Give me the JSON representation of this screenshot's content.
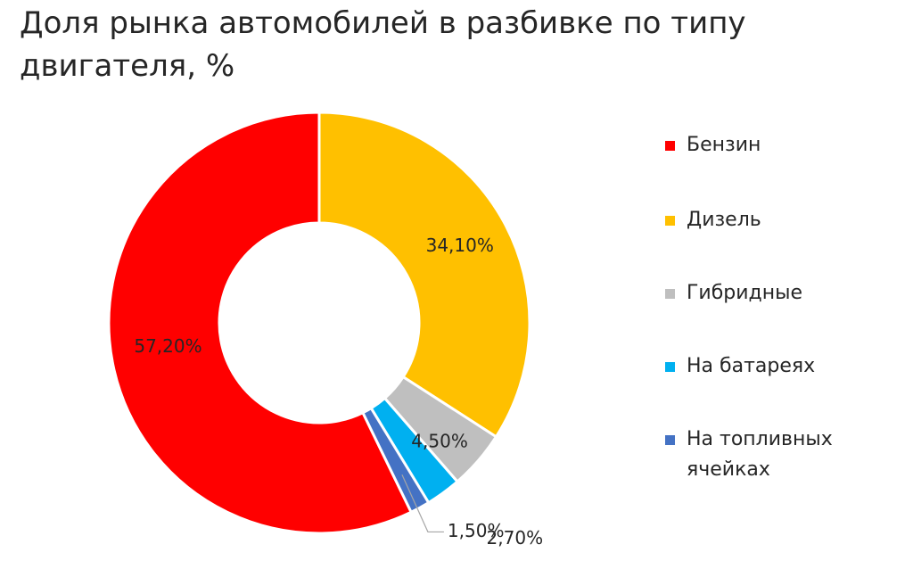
{
  "chart_data": {
    "type": "pie",
    "title": "Доля рынка автомобилей в разбивке по типу двигателя, %",
    "series": [
      {
        "labels": [
          "Бензин",
          "Дизель",
          "Гибридные",
          "На батареях",
          "На топливных ячейках"
        ],
        "values": [
          57.2,
          34.1,
          4.5,
          2.7,
          1.5
        ],
        "data_labels": [
          "57,20%",
          "34,10%",
          "4,50%",
          "2,70%",
          "1,50%"
        ],
        "colors": [
          "#ff0000",
          "#ffc000",
          "#bfbfbf",
          "#00b0f0",
          "#4472c4"
        ]
      }
    ],
    "legend_position": "right"
  },
  "legend": {
    "items": [
      {
        "label": "Бензин",
        "color": "#ff0000"
      },
      {
        "label": "Дизель",
        "color": "#ffc000"
      },
      {
        "label": "Гибридные",
        "color": "#bfbfbf"
      },
      {
        "label": "На батареях",
        "color": "#00b0f0"
      },
      {
        "label": "На топливных ячейках",
        "color": "#4472c4"
      }
    ]
  }
}
